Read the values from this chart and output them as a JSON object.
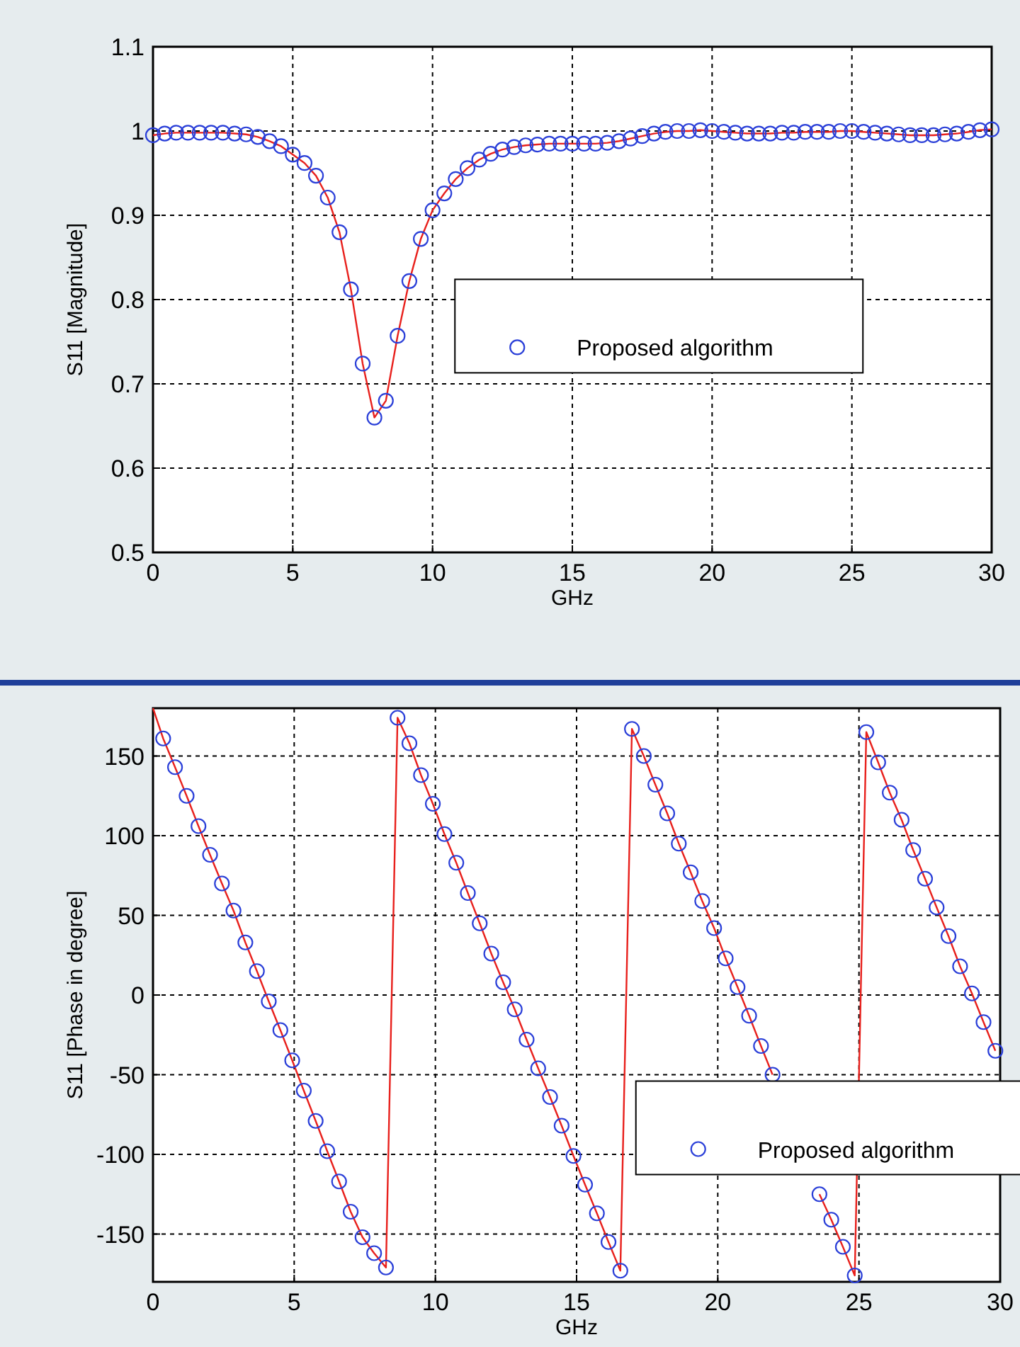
{
  "chart_data": [
    {
      "type": "line",
      "xlabel": "GHz",
      "ylabel": "S11 [Magnitude]",
      "x": [
        0,
        0.42,
        0.83,
        1.25,
        1.67,
        2.08,
        2.5,
        2.92,
        3.33,
        3.75,
        4.17,
        4.58,
        5,
        5.42,
        5.83,
        6.25,
        6.67,
        7.08,
        7.5,
        7.92,
        8.33,
        8.75,
        9.17,
        9.58,
        10,
        10.42,
        10.83,
        11.25,
        11.67,
        12.08,
        12.5,
        12.92,
        13.33,
        13.75,
        14.17,
        14.58,
        15,
        15.42,
        15.83,
        16.25,
        16.67,
        17.08,
        17.5,
        17.92,
        18.33,
        18.75,
        19.17,
        19.58,
        20,
        20.42,
        20.83,
        21.25,
        21.67,
        22.08,
        22.5,
        22.92,
        23.33,
        23.75,
        24.17,
        24.58,
        25,
        25.42,
        25.83,
        26.25,
        26.67,
        27.08,
        27.5,
        27.92,
        28.33,
        28.75,
        29.17,
        29.58,
        30
      ],
      "series": [
        {
          "color": "#e8201c",
          "line_style": "solid",
          "values": [
            0.995,
            0.997,
            0.998,
            0.998,
            0.998,
            0.998,
            0.998,
            0.997,
            0.996,
            0.993,
            0.988,
            0.982,
            0.972,
            0.962,
            0.947,
            0.921,
            0.88,
            0.812,
            0.724,
            0.66,
            0.68,
            0.757,
            0.822,
            0.872,
            0.906,
            0.926,
            0.943,
            0.956,
            0.966,
            0.973,
            0.978,
            0.981,
            0.983,
            0.984,
            0.985,
            0.985,
            0.985,
            0.985,
            0.985,
            0.986,
            0.988,
            0.991,
            0.994,
            0.997,
            0.999,
            1.0,
            1.0,
            1.001,
            1.0,
            0.999,
            0.998,
            0.997,
            0.997,
            0.997,
            0.998,
            0.998,
            0.999,
            0.999,
            0.999,
            1.0,
            1.0,
            0.999,
            0.998,
            0.997,
            0.996,
            0.995,
            0.995,
            0.995,
            0.996,
            0.997,
            0.999,
            1.001,
            1.002
          ]
        },
        {
          "type": "scatter",
          "name": "Proposed algorithm",
          "color": "#2a3fd8",
          "marker": "circle",
          "values": [
            0.995,
            0.997,
            0.998,
            0.998,
            0.998,
            0.998,
            0.998,
            0.997,
            0.996,
            0.993,
            0.988,
            0.982,
            0.972,
            0.962,
            0.947,
            0.921,
            0.88,
            0.812,
            0.724,
            0.66,
            0.68,
            0.757,
            0.822,
            0.872,
            0.906,
            0.926,
            0.943,
            0.956,
            0.966,
            0.973,
            0.978,
            0.981,
            0.983,
            0.984,
            0.985,
            0.985,
            0.985,
            0.985,
            0.985,
            0.986,
            0.988,
            0.991,
            0.994,
            0.997,
            0.999,
            1.0,
            1.0,
            1.001,
            1.0,
            0.999,
            0.998,
            0.997,
            0.997,
            0.997,
            0.998,
            0.998,
            0.999,
            0.999,
            0.999,
            1.0,
            1.0,
            0.999,
            0.998,
            0.997,
            0.996,
            0.995,
            0.995,
            0.995,
            0.996,
            0.997,
            0.999,
            1.001,
            1.002
          ]
        }
      ],
      "xlim": [
        0,
        30
      ],
      "xticks": [
        0,
        5,
        10,
        15,
        20,
        25,
        30
      ],
      "ylim": [
        0.5,
        1.1
      ],
      "yticks": [
        0.5,
        0.6,
        0.7,
        0.8,
        0.9,
        1,
        1.1
      ],
      "grid": true,
      "legend": "right"
    },
    {
      "type": "line",
      "xlabel": "GHz",
      "ylabel": "S11 [Phase in degree]",
      "series": [
        {
          "color": "#e8201c",
          "line_style": "solid",
          "x": [
            0,
            0.36,
            0.78,
            1.19,
            1.61,
            2.02,
            2.44,
            2.85,
            3.27,
            3.68,
            4.1,
            4.51,
            4.93,
            5.34,
            5.76,
            6.17,
            6.59,
            7.0,
            7.42,
            7.83,
            8.25,
            8.66,
            9.08,
            9.49,
            9.91,
            10.32,
            10.74,
            11.15,
            11.57,
            11.98,
            12.4,
            12.81,
            13.23,
            13.64,
            14.06,
            14.47,
            14.89,
            15.3,
            15.72,
            16.13,
            16.55,
            16.96,
            17.38,
            17.79,
            18.21,
            18.62,
            19.04,
            19.45,
            19.87,
            20.28,
            20.7,
            21.11,
            21.53,
            21.94,
            22.36,
            22.77,
            23.19,
            23.6,
            24.02,
            24.43,
            24.85,
            25.26,
            25.68,
            26.09,
            26.51,
            26.92,
            27.34,
            27.75,
            28.17,
            28.58,
            29.0,
            29.41,
            29.83
          ],
          "values": [
            180,
            161,
            143,
            125,
            106,
            88,
            70,
            53,
            33,
            15,
            -4,
            -22,
            -41,
            -60,
            -79,
            -98,
            -117,
            -136,
            -152,
            -162,
            -171,
            174,
            158,
            138,
            120,
            101,
            83,
            64,
            45,
            26,
            8,
            -9,
            -28,
            -46,
            -64,
            -82,
            -101,
            -119,
            -137,
            -155,
            -173,
            167,
            150,
            132,
            114,
            95,
            77,
            59,
            42,
            23,
            5,
            -13,
            -32,
            -50,
            null,
            null,
            null,
            -125,
            -141,
            -158,
            -176,
            165,
            146,
            127,
            110,
            91,
            73,
            55,
            37,
            18,
            1,
            -17,
            -35
          ]
        },
        {
          "type": "scatter",
          "name": "Proposed algorithm",
          "color": "#2a3fd8",
          "marker": "circle",
          "x": [
            0.36,
            0.78,
            1.19,
            1.61,
            2.02,
            2.44,
            2.85,
            3.27,
            3.68,
            4.1,
            4.51,
            4.93,
            5.34,
            5.76,
            6.17,
            6.59,
            7.0,
            7.42,
            7.83,
            8.25,
            8.66,
            9.08,
            9.49,
            9.91,
            10.32,
            10.74,
            11.15,
            11.57,
            11.98,
            12.4,
            12.81,
            13.23,
            13.64,
            14.06,
            14.47,
            14.89,
            15.3,
            15.72,
            16.13,
            16.55,
            16.96,
            17.38,
            17.79,
            18.21,
            18.62,
            19.04,
            19.45,
            19.87,
            20.28,
            20.7,
            21.11,
            21.53,
            21.94,
            22.36,
            22.77,
            23.19,
            23.6,
            24.02,
            24.43,
            24.85,
            25.26,
            25.68,
            26.09,
            26.51,
            26.92,
            27.34,
            27.75,
            28.17,
            28.58,
            29.0,
            29.41,
            29.83
          ],
          "values": [
            161,
            143,
            125,
            106,
            88,
            70,
            53,
            33,
            15,
            -4,
            -22,
            -41,
            -60,
            -79,
            -98,
            -117,
            -136,
            -152,
            -162,
            -171,
            174,
            158,
            138,
            120,
            101,
            83,
            64,
            45,
            26,
            8,
            -9,
            -28,
            -46,
            -64,
            -82,
            -101,
            -119,
            -137,
            -155,
            -173,
            167,
            150,
            132,
            114,
            95,
            77,
            59,
            42,
            23,
            5,
            -13,
            -32,
            -50,
            null,
            null,
            null,
            -125,
            -141,
            -158,
            -176,
            165,
            146,
            127,
            110,
            91,
            73,
            55,
            37,
            18,
            1,
            -17,
            -35
          ]
        }
      ],
      "xlim": [
        0,
        30
      ],
      "xticks": [
        0,
        5,
        10,
        15,
        20,
        25,
        30
      ],
      "ylim": [
        -180,
        180
      ],
      "yticks": [
        -150,
        -100,
        -50,
        0,
        50,
        100,
        150
      ],
      "grid": true,
      "legend": "bottom right"
    }
  ]
}
